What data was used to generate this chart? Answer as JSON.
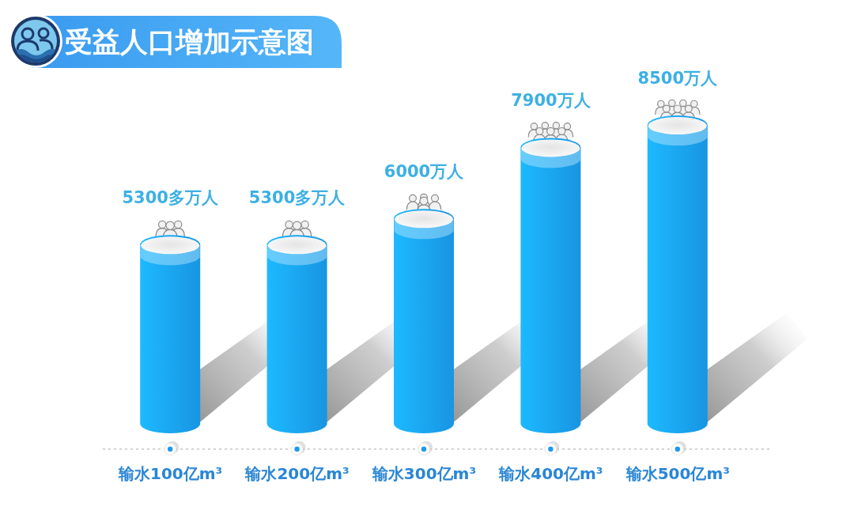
{
  "chart_data": {
    "type": "bar",
    "title": "受益人口增加示意图",
    "categories": [
      "输水100亿m³",
      "输水200亿m³",
      "输水300亿m³",
      "输水400亿m³",
      "输水500亿m³"
    ],
    "values": [
      5300,
      5300,
      6000,
      7900,
      8500
    ],
    "value_labels": [
      "5300多万人",
      "5300多万人",
      "6000万人",
      "7900万人",
      "8500万人"
    ],
    "color": "#1aa3f7"
  }
}
